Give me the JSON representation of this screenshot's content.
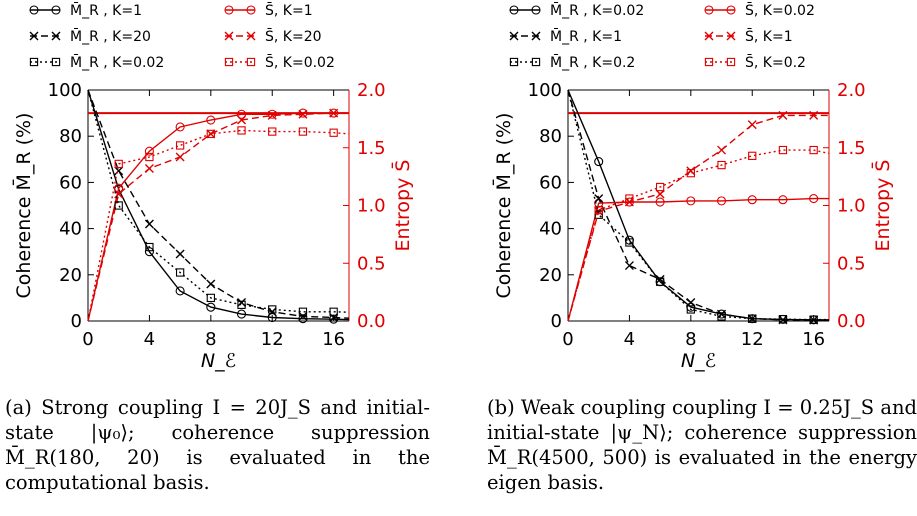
{
  "chart_data": [
    {
      "type": "line",
      "panel": "a",
      "caption": "(a) Strong coupling I = 20J_S and initial-state |ψ₀⟩; coherence suppression M̄_R(180, 20) is evaluated in the computational basis.",
      "xlabel": "N_ℰ",
      "ylabel": "Coherence M̄_R (%)",
      "y2label": "Entropy S̄",
      "xlim": [
        0,
        17
      ],
      "ylim": [
        0,
        100
      ],
      "y2lim": [
        0,
        2
      ],
      "xticks": [
        "0",
        "4",
        "8",
        "12",
        "16"
      ],
      "yticks": [
        "0",
        "20",
        "40",
        "60",
        "80",
        "100"
      ],
      "y2ticks": [
        "0.0",
        "0.5",
        "1.0",
        "1.5",
        "2.0"
      ],
      "reference_line_y2": 1.8,
      "legend": [
        "M̄_R , K=1",
        "S̄, K=1",
        "M̄_R , K=20",
        "S̄, K=20",
        "M̄_R , K=0.02",
        "S̄, K=0.02"
      ],
      "x": [
        0,
        2,
        4,
        6,
        8,
        10,
        12,
        14,
        16,
        17
      ],
      "series": [
        {
          "name": "M̄_R , K=1",
          "axis": "left",
          "color": "#000000",
          "dash": "solid",
          "marker": "circle",
          "values": [
            100,
            57,
            30,
            13,
            6,
            3,
            1.5,
            1,
            0.8,
            0.6
          ]
        },
        {
          "name": "S̄, K=1",
          "axis": "right",
          "color": "#e00000",
          "dash": "solid",
          "marker": "circle",
          "values": [
            0,
            1.15,
            1.47,
            1.68,
            1.74,
            1.79,
            1.79,
            1.8,
            1.8,
            1.8
          ]
        },
        {
          "name": "M̄_R , K=20",
          "axis": "left",
          "color": "#000000",
          "dash": "dash",
          "marker": "x",
          "values": [
            100,
            65,
            42,
            29,
            16,
            8,
            4,
            2,
            1.5,
            1.2
          ]
        },
        {
          "name": "S̄, K=20",
          "axis": "right",
          "color": "#e00000",
          "dash": "dash",
          "marker": "x",
          "values": [
            0,
            1.1,
            1.32,
            1.42,
            1.62,
            1.74,
            1.78,
            1.79,
            1.8,
            1.8
          ]
        },
        {
          "name": "M̄_R , K=0.02",
          "axis": "left",
          "color": "#000000",
          "dash": "dot",
          "marker": "square",
          "values": [
            100,
            50,
            32,
            21,
            10,
            7,
            5,
            4,
            4,
            3.8
          ]
        },
        {
          "name": "S̄, K=0.02",
          "axis": "right",
          "color": "#e00000",
          "dash": "dot",
          "marker": "square",
          "values": [
            0,
            1.36,
            1.42,
            1.52,
            1.62,
            1.65,
            1.64,
            1.64,
            1.63,
            1.62
          ]
        }
      ]
    },
    {
      "type": "line",
      "panel": "b",
      "caption": "(b) Weak coupling coupling I = 0.25J_S and initial-state |ψ_N⟩; coherence suppression M̄_R(4500, 500) is evaluated in the energy eigen basis.",
      "xlabel": "N_ℰ",
      "ylabel": "Coherence M̄_R (%)",
      "y2label": "Entropy S̄",
      "xlim": [
        0,
        17
      ],
      "ylim": [
        0,
        100
      ],
      "y2lim": [
        0,
        2
      ],
      "xticks": [
        "0",
        "4",
        "8",
        "12",
        "16"
      ],
      "yticks": [
        "0",
        "20",
        "40",
        "60",
        "80",
        "100"
      ],
      "y2ticks": [
        "0.0",
        "0.5",
        "1.0",
        "1.5",
        "2.0"
      ],
      "reference_line_y2": 1.8,
      "legend": [
        "M̄_R , K=0.02",
        "S̄, K=0.02",
        "M̄_R , K=1",
        "S̄, K=1",
        "M̄_R , K=0.2",
        "S̄, K=0.2"
      ],
      "x": [
        0,
        2,
        4,
        6,
        8,
        10,
        12,
        14,
        16,
        17
      ],
      "series": [
        {
          "name": "M̄_R , K=0.02",
          "axis": "left",
          "color": "#000000",
          "dash": "solid",
          "marker": "circle",
          "values": [
            100,
            69,
            35,
            17,
            6,
            3,
            1,
            0.7,
            0.5,
            0.5
          ]
        },
        {
          "name": "S̄, K=0.02",
          "axis": "right",
          "color": "#e00000",
          "dash": "solid",
          "marker": "circle",
          "values": [
            0,
            1.02,
            1.03,
            1.03,
            1.04,
            1.04,
            1.05,
            1.05,
            1.06,
            1.06
          ]
        },
        {
          "name": "M̄_R , K=1",
          "axis": "left",
          "color": "#000000",
          "dash": "dash",
          "marker": "x",
          "values": [
            100,
            53,
            24,
            18,
            8,
            3,
            1,
            0.5,
            0.4,
            0.4
          ]
        },
        {
          "name": "S̄, K=1",
          "axis": "right",
          "color": "#e00000",
          "dash": "dash",
          "marker": "x",
          "values": [
            0,
            0.95,
            1.03,
            1.1,
            1.3,
            1.48,
            1.7,
            1.78,
            1.78,
            1.78
          ]
        },
        {
          "name": "M̄_R , K=0.2",
          "axis": "left",
          "color": "#000000",
          "dash": "dot",
          "marker": "square",
          "values": [
            100,
            46,
            34,
            17,
            5,
            2,
            1,
            0.8,
            0.6,
            0.6
          ]
        },
        {
          "name": "S̄, K=0.2",
          "axis": "right",
          "color": "#e00000",
          "dash": "dot",
          "marker": "square",
          "values": [
            0,
            0.96,
            1.06,
            1.16,
            1.28,
            1.35,
            1.43,
            1.48,
            1.48,
            1.45
          ]
        }
      ]
    }
  ]
}
